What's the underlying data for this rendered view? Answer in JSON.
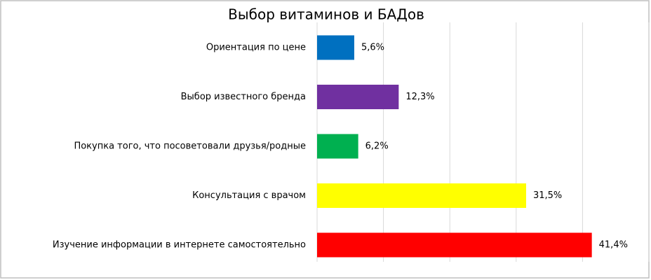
{
  "chart_data": {
    "type": "hbar",
    "title": "Выбор витаминов и БАДов",
    "categories": [
      "Ориентация по цене",
      "Выбор известного бренда",
      "Покупка того, что посоветовали друзья/родные",
      "Консультация с врачом",
      "Изучение информации в интернете самостоятельно"
    ],
    "values": [
      5.6,
      12.3,
      6.2,
      31.5,
      41.4
    ],
    "value_labels": [
      "5,6%",
      "12,3%",
      "6,2%",
      "31,5%",
      "41,4%"
    ],
    "colors": [
      "#0070c0",
      "#7030a0",
      "#00b050",
      "#ffff00",
      "#ff0000"
    ],
    "xlim": [
      0,
      50
    ],
    "xticks": [
      0,
      10,
      20,
      30,
      40,
      50
    ],
    "grid": true
  }
}
